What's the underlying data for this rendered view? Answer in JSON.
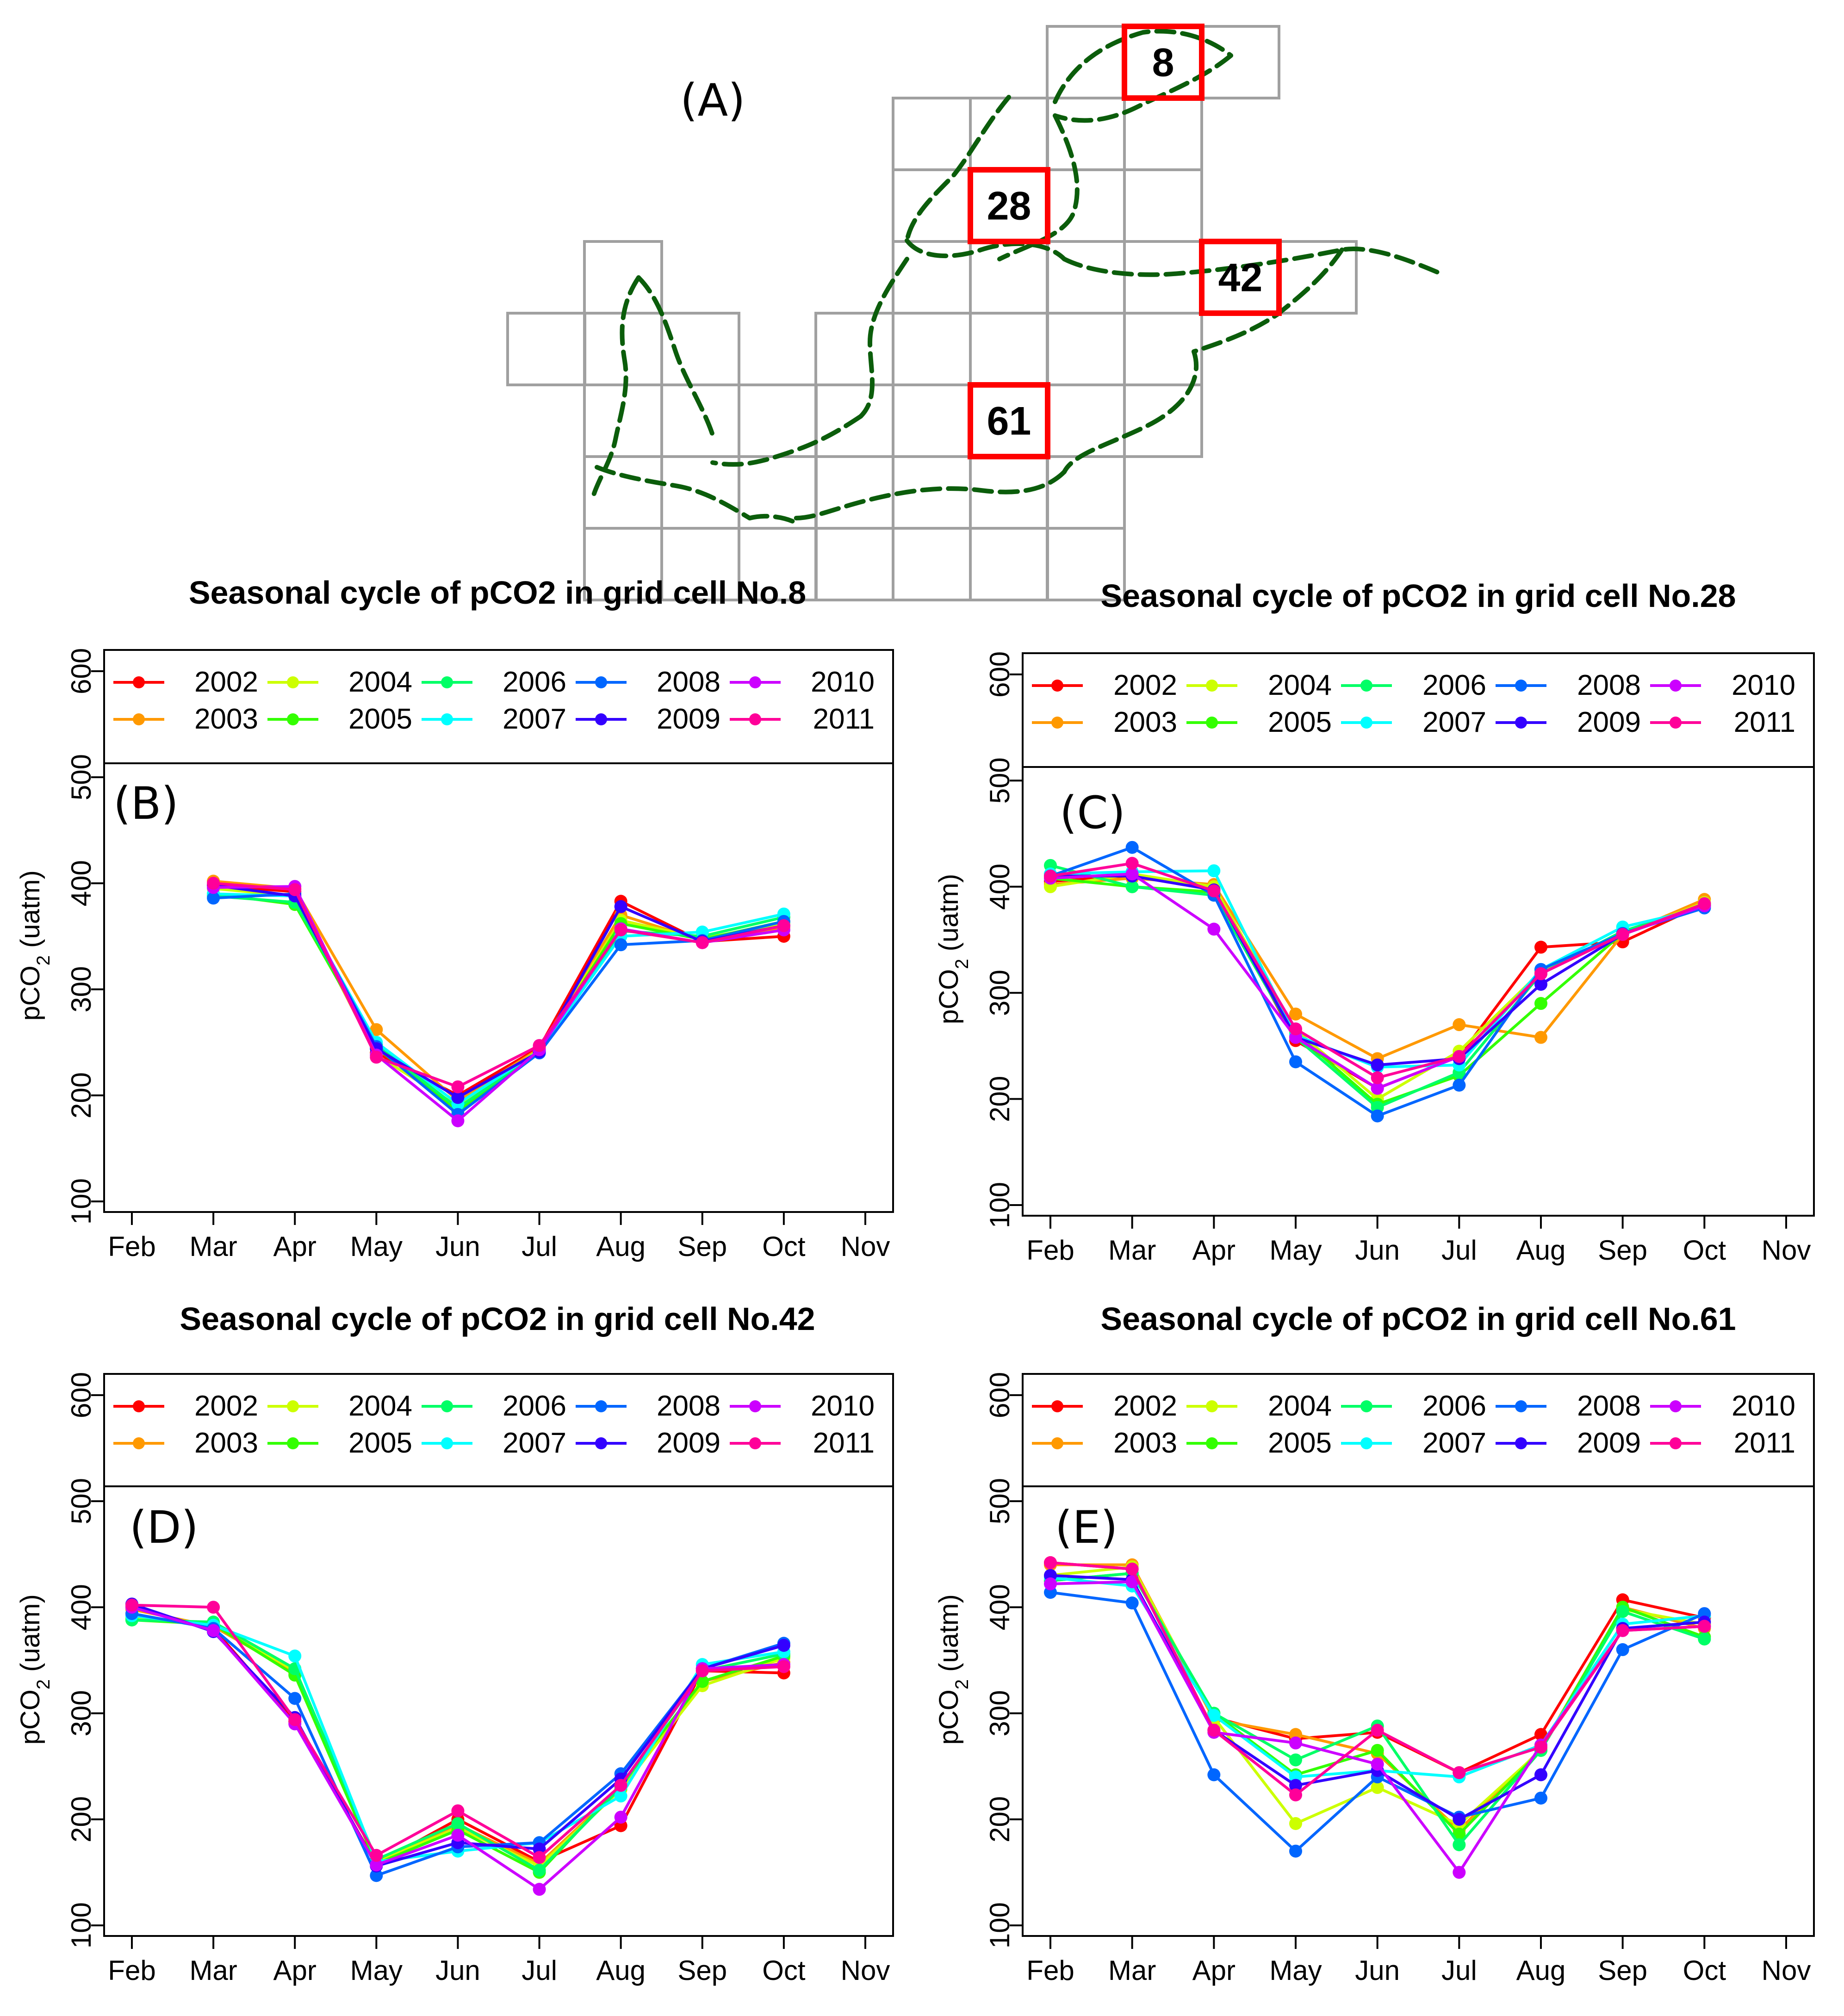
{
  "figure": {
    "panel_a_label": "(A)",
    "map_line_color": "#0b5d0b",
    "grid_color": "#a0a0a0",
    "highlight_color": "#ff0000",
    "highlighted_cells": [
      "8",
      "28",
      "42",
      "61"
    ]
  },
  "series_colors": {
    "2002": "#ff0000",
    "2003": "#ff9900",
    "2004": "#ccff00",
    "2005": "#33ff00",
    "2006": "#00ff66",
    "2007": "#00ffff",
    "2008": "#0066ff",
    "2009": "#3300ff",
    "2010": "#cc00ff",
    "2011": "#ff0099"
  },
  "chart_data": [
    {
      "type": "line",
      "panel": "(B)",
      "title": "Seasonal cycle of pCO2 in grid cell No.8",
      "xlabel": "",
      "ylabel_base": "pCO",
      "ylabel_sub": "2",
      "ylabel_suffix": " (uatm)",
      "categories": [
        "Feb",
        "Mar",
        "Apr",
        "May",
        "Jun",
        "Jul",
        "Aug",
        "Sep",
        "Oct",
        "Nov"
      ],
      "yticks": [
        100,
        200,
        300,
        400,
        500,
        600
      ],
      "ylim": [
        90,
        620
      ],
      "legend_position": "top",
      "series": [
        {
          "name": "2002",
          "values": [
            null,
            398,
            392,
            240,
            200,
            245,
            383,
            345,
            350,
            null
          ]
        },
        {
          "name": "2003",
          "values": [
            null,
            402,
            395,
            262,
            195,
            244,
            370,
            346,
            358,
            null
          ]
        },
        {
          "name": "2004",
          "values": [
            null,
            395,
            388,
            238,
            190,
            243,
            365,
            348,
            362,
            null
          ]
        },
        {
          "name": "2005",
          "values": [
            null,
            390,
            380,
            245,
            185,
            242,
            362,
            347,
            364,
            null
          ]
        },
        {
          "name": "2006",
          "values": [
            null,
            388,
            382,
            248,
            188,
            241,
            355,
            350,
            368,
            null
          ]
        },
        {
          "name": "2007",
          "values": [
            null,
            390,
            388,
            250,
            192,
            242,
            350,
            354,
            371,
            null
          ]
        },
        {
          "name": "2008",
          "values": [
            null,
            386,
            390,
            246,
            182,
            240,
            342,
            346,
            364,
            null
          ]
        },
        {
          "name": "2009",
          "values": [
            null,
            398,
            388,
            244,
            198,
            241,
            378,
            345,
            360,
            null
          ]
        },
        {
          "name": "2010",
          "values": [
            null,
            396,
            397,
            238,
            176,
            243,
            357,
            344,
            356,
            null
          ]
        },
        {
          "name": "2011",
          "values": [
            null,
            400,
            394,
            236,
            208,
            247,
            356,
            344,
            360,
            null
          ]
        }
      ]
    },
    {
      "type": "line",
      "panel": "(C)",
      "title": "Seasonal cycle of pCO2 in grid cell No.28",
      "xlabel": "",
      "ylabel_base": "pCO",
      "ylabel_sub": "2",
      "ylabel_suffix": " (uatm)",
      "categories": [
        "Feb",
        "Mar",
        "Apr",
        "May",
        "Jun",
        "Jul",
        "Aug",
        "Sep",
        "Oct",
        "Nov"
      ],
      "yticks": [
        100,
        200,
        300,
        400,
        500,
        600
      ],
      "ylim": [
        90,
        620
      ],
      "legend_position": "top",
      "series": [
        {
          "name": "2002",
          "values": [
            405,
            410,
            398,
            255,
            210,
            240,
            343,
            348,
            384,
            null
          ]
        },
        {
          "name": "2003",
          "values": [
            402,
            408,
            402,
            280,
            238,
            270,
            258,
            355,
            388,
            null
          ]
        },
        {
          "name": "2004",
          "values": [
            400,
            412,
            400,
            265,
            200,
            245,
            320,
            355,
            385,
            null
          ]
        },
        {
          "name": "2005",
          "values": [
            408,
            400,
            395,
            262,
            195,
            222,
            290,
            356,
            383,
            null
          ]
        },
        {
          "name": "2006",
          "values": [
            420,
            400,
            392,
            258,
            192,
            225,
            318,
            358,
            382,
            null
          ]
        },
        {
          "name": "2007",
          "values": [
            412,
            414,
            415,
            260,
            230,
            232,
            322,
            362,
            380,
            null
          ]
        },
        {
          "name": "2008",
          "values": [
            410,
            437,
            392,
            235,
            184,
            213,
            322,
            356,
            380,
            null
          ]
        },
        {
          "name": "2009",
          "values": [
            410,
            410,
            397,
            258,
            232,
            238,
            308,
            355,
            382,
            null
          ]
        },
        {
          "name": "2010",
          "values": [
            408,
            412,
            360,
            258,
            210,
            240,
            318,
            355,
            382,
            null
          ]
        },
        {
          "name": "2011",
          "values": [
            410,
            422,
            396,
            266,
            220,
            240,
            318,
            355,
            384,
            null
          ]
        }
      ]
    },
    {
      "type": "line",
      "panel": "(D)",
      "title": "Seasonal cycle of pCO2 in grid cell No.42",
      "xlabel": "",
      "ylabel_base": "pCO",
      "ylabel_sub": "2",
      "ylabel_suffix": " (uatm)",
      "categories": [
        "Feb",
        "Mar",
        "Apr",
        "May",
        "Jun",
        "Jul",
        "Aug",
        "Sep",
        "Oct",
        "Nov"
      ],
      "yticks": [
        100,
        200,
        300,
        400,
        500,
        600
      ],
      "ylim": [
        90,
        620
      ],
      "legend_position": "top",
      "series": [
        {
          "name": "2002",
          "values": [
            400,
            380,
            292,
            158,
            200,
            160,
            194,
            340,
            338,
            null
          ]
        },
        {
          "name": "2003",
          "values": [
            398,
            382,
            338,
            162,
            195,
            158,
            230,
            330,
            348,
            null
          ]
        },
        {
          "name": "2004",
          "values": [
            390,
            385,
            340,
            160,
            192,
            156,
            228,
            326,
            352,
            null
          ]
        },
        {
          "name": "2005",
          "values": [
            388,
            384,
            336,
            158,
            190,
            150,
            232,
            330,
            354,
            null
          ]
        },
        {
          "name": "2006",
          "values": [
            388,
            386,
            342,
            162,
            196,
            152,
            230,
            340,
            356,
            null
          ]
        },
        {
          "name": "2007",
          "values": [
            392,
            383,
            354,
            160,
            170,
            178,
            222,
            346,
            358,
            null
          ]
        },
        {
          "name": "2008",
          "values": [
            394,
            380,
            314,
            147,
            174,
            178,
            243,
            342,
            366,
            null
          ]
        },
        {
          "name": "2009",
          "values": [
            403,
            377,
            296,
            156,
            178,
            172,
            238,
            342,
            364,
            null
          ]
        },
        {
          "name": "2010",
          "values": [
            400,
            378,
            290,
            157,
            185,
            134,
            202,
            342,
            346,
            null
          ]
        },
        {
          "name": "2011",
          "values": [
            402,
            400,
            294,
            166,
            208,
            164,
            232,
            340,
            344,
            null
          ]
        }
      ]
    },
    {
      "type": "line",
      "panel": "(E)",
      "title": "Seasonal cycle of pCO2 in grid cell No.61",
      "xlabel": "",
      "ylabel_base": "pCO",
      "ylabel_sub": "2",
      "ylabel_suffix": " (uatm)",
      "categories": [
        "Feb",
        "Mar",
        "Apr",
        "May",
        "Jun",
        "Jul",
        "Aug",
        "Sep",
        "Oct",
        "Nov"
      ],
      "yticks": [
        100,
        200,
        300,
        400,
        500,
        600
      ],
      "ylim": [
        90,
        620
      ],
      "legend_position": "top",
      "series": [
        {
          "name": "2002",
          "values": [
            442,
            436,
            296,
            276,
            282,
            244,
            280,
            407,
            390,
            null
          ]
        },
        {
          "name": "2003",
          "values": [
            440,
            440,
            294,
            280,
            262,
            190,
            266,
            400,
            380,
            null
          ]
        },
        {
          "name": "2004",
          "values": [
            430,
            438,
            296,
            196,
            230,
            195,
            265,
            398,
            384,
            null
          ]
        },
        {
          "name": "2005",
          "values": [
            425,
            432,
            300,
            242,
            265,
            186,
            265,
            400,
            372,
            null
          ]
        },
        {
          "name": "2006",
          "values": [
            425,
            432,
            300,
            256,
            288,
            176,
            265,
            396,
            370,
            null
          ]
        },
        {
          "name": "2007",
          "values": [
            428,
            420,
            298,
            240,
            246,
            240,
            270,
            384,
            392,
            null
          ]
        },
        {
          "name": "2008",
          "values": [
            414,
            404,
            242,
            170,
            240,
            202,
            220,
            360,
            394,
            null
          ]
        },
        {
          "name": "2009",
          "values": [
            430,
            426,
            284,
            232,
            246,
            200,
            242,
            380,
            386,
            null
          ]
        },
        {
          "name": "2010",
          "values": [
            422,
            424,
            282,
            272,
            252,
            150,
            270,
            378,
            382,
            null
          ]
        },
        {
          "name": "2011",
          "values": [
            442,
            436,
            284,
            223,
            284,
            244,
            268,
            378,
            382,
            null
          ]
        }
      ]
    }
  ]
}
